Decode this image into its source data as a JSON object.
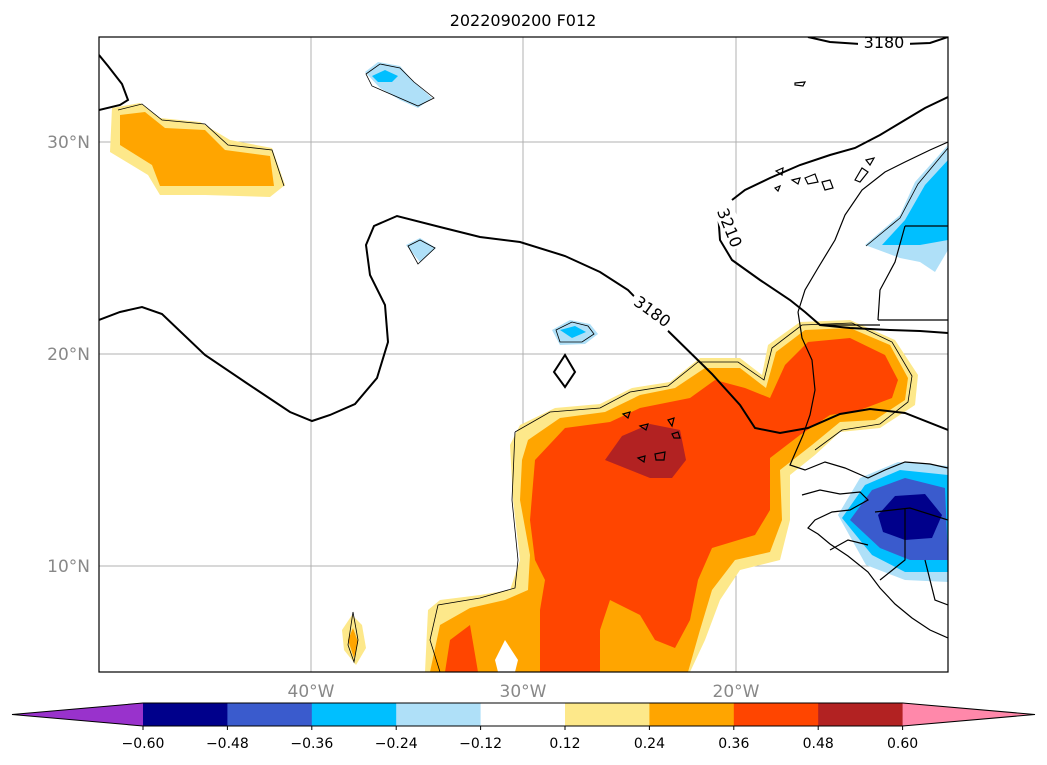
{
  "title": "2022090200 F012",
  "map": {
    "lat_labels": [
      "30°N",
      "20°N",
      "10°N"
    ],
    "lon_labels": [
      "40°W",
      "30°W",
      "20°W"
    ],
    "contour_labels": [
      "3180",
      "3210",
      "3180"
    ]
  },
  "colorbar": {
    "levels": [
      "−0.60",
      "−0.48",
      "−0.36",
      "−0.24",
      "−0.12",
      "0.12",
      "0.24",
      "0.36",
      "0.48",
      "0.60"
    ],
    "colors": [
      "#9932cc",
      "#00008b",
      "#3a5bcd",
      "#00bfff",
      "#afe0f8",
      "#ffffff",
      "#fde88a",
      "#ffa500",
      "#ff4500",
      "#b22222",
      "#ff88aa"
    ]
  }
}
